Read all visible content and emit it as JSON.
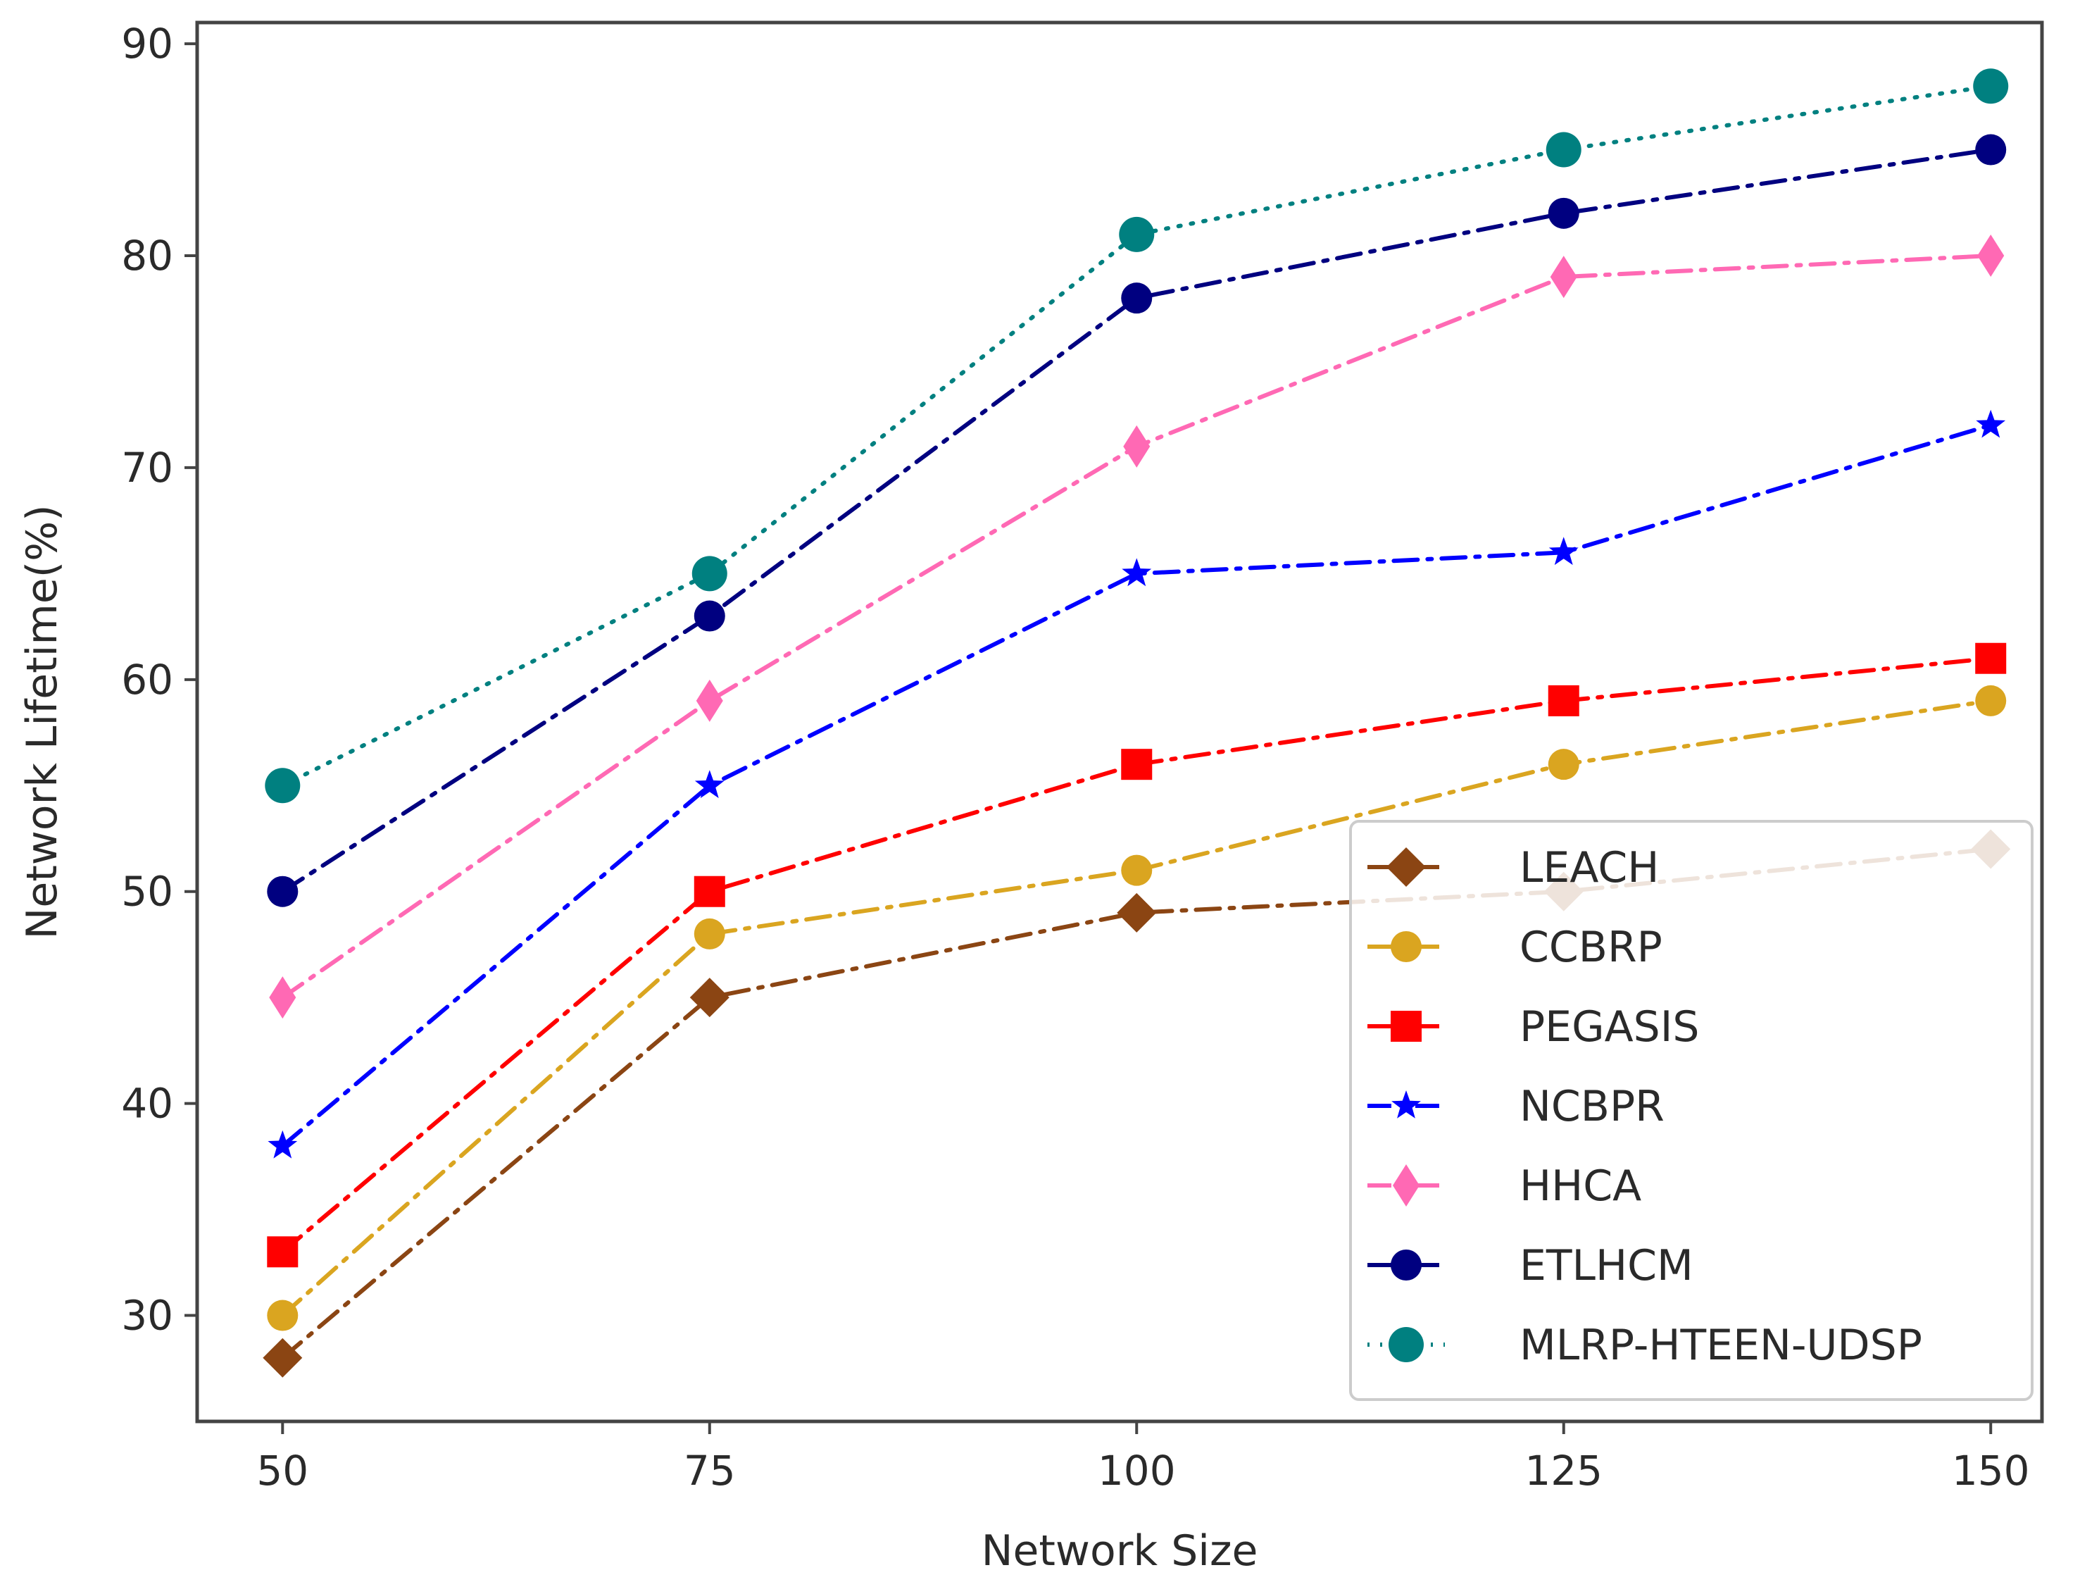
{
  "chart_data": {
    "type": "line",
    "title": "",
    "xlabel": "Network Size",
    "ylabel": "Network Lifetime(%)",
    "x": [
      50,
      75,
      100,
      125,
      150
    ],
    "xticks": [
      "50",
      "75",
      "100",
      "125",
      "150"
    ],
    "yticks": [
      "30",
      "40",
      "50",
      "60",
      "70",
      "80",
      "90"
    ],
    "xlim": [
      45,
      153
    ],
    "ylim": [
      25,
      91
    ],
    "grid": false,
    "legend_position": "lower-right",
    "series": [
      {
        "name": "LEACH",
        "values": [
          28,
          45,
          49,
          50,
          52
        ],
        "color": "#8b4513",
        "marker": "diamond",
        "dash": "dashdot"
      },
      {
        "name": "CCBRP",
        "values": [
          30,
          48,
          51,
          56,
          59
        ],
        "color": "#daa520",
        "marker": "circle",
        "dash": "dashdot"
      },
      {
        "name": "PEGASIS",
        "values": [
          33,
          50,
          56,
          59,
          61
        ],
        "color": "#ff0000",
        "marker": "square",
        "dash": "dashdot"
      },
      {
        "name": "NCBPR",
        "values": [
          38,
          55,
          65,
          66,
          72
        ],
        "color": "#0000ff",
        "marker": "star",
        "dash": "dashdot"
      },
      {
        "name": "HHCA",
        "values": [
          45,
          59,
          71,
          79,
          80
        ],
        "color": "#ff69b4",
        "marker": "thin-diamond",
        "dash": "dashdot"
      },
      {
        "name": "ETLHCM",
        "values": [
          50,
          63,
          78,
          82,
          85
        ],
        "color": "#000080",
        "marker": "circle",
        "dash": "dashdot"
      },
      {
        "name": "MLRP-HTEEN-UDSP",
        "values": [
          55,
          65,
          81,
          85,
          88
        ],
        "color": "#008080",
        "marker": "circle-large",
        "dash": "dotted"
      }
    ]
  }
}
